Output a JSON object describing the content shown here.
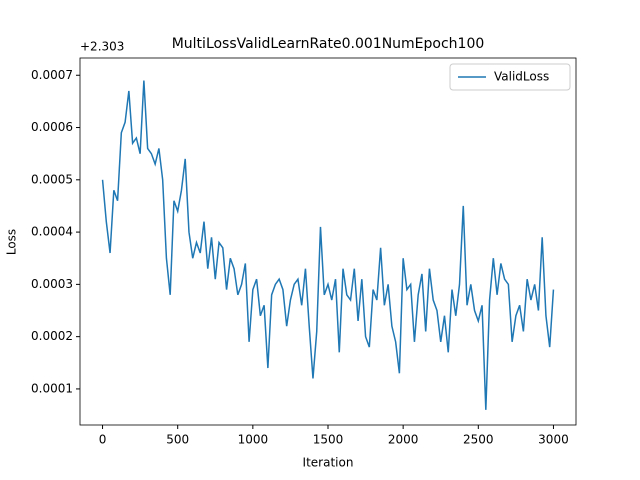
{
  "chart_data": {
    "type": "line",
    "title": "MultiLossValidLearnRate0.001NumEpoch100",
    "x_label": "Iteration",
    "y_label": "Loss",
    "y_offset": "+2.303",
    "x": [
      0,
      25,
      50,
      75,
      100,
      125,
      150,
      175,
      200,
      225,
      250,
      275,
      300,
      325,
      350,
      375,
      400,
      425,
      450,
      475,
      500,
      525,
      550,
      575,
      600,
      625,
      650,
      675,
      700,
      725,
      750,
      775,
      800,
      825,
      850,
      875,
      900,
      925,
      950,
      975,
      1000,
      1025,
      1050,
      1075,
      1100,
      1125,
      1150,
      1175,
      1200,
      1225,
      1250,
      1275,
      1300,
      1325,
      1350,
      1375,
      1400,
      1425,
      1450,
      1475,
      1500,
      1525,
      1550,
      1575,
      1600,
      1625,
      1650,
      1675,
      1700,
      1725,
      1750,
      1775,
      1800,
      1825,
      1850,
      1875,
      1900,
      1925,
      1950,
      1975,
      2000,
      2025,
      2050,
      2075,
      2100,
      2125,
      2150,
      2175,
      2200,
      2225,
      2250,
      2275,
      2300,
      2325,
      2350,
      2375,
      2400,
      2425,
      2450,
      2475,
      2500,
      2525,
      2550,
      2575,
      2600,
      2625,
      2650,
      2675,
      2700,
      2725,
      2750,
      2775,
      2800,
      2825,
      2850,
      2875,
      2900,
      2925,
      2950,
      2975,
      3000
    ],
    "series": [
      {
        "name": "ValidLoss",
        "color": "#1f77b4",
        "values": [
          0.0005,
          0.00042,
          0.00036,
          0.00048,
          0.00046,
          0.00059,
          0.00061,
          0.00067,
          0.00057,
          0.00058,
          0.00055,
          0.00069,
          0.00056,
          0.00055,
          0.00053,
          0.00056,
          0.0005,
          0.00035,
          0.00028,
          0.00046,
          0.00044,
          0.00048,
          0.00054,
          0.0004,
          0.00035,
          0.00038,
          0.00036,
          0.00042,
          0.00033,
          0.00039,
          0.00031,
          0.00038,
          0.00037,
          0.00029,
          0.00035,
          0.00033,
          0.00028,
          0.0003,
          0.00034,
          0.00019,
          0.00029,
          0.00031,
          0.00024,
          0.00026,
          0.00014,
          0.00028,
          0.0003,
          0.00031,
          0.00029,
          0.00022,
          0.00027,
          0.0003,
          0.00031,
          0.00026,
          0.00033,
          0.00022,
          0.00012,
          0.00021,
          0.00041,
          0.00028,
          0.0003,
          0.00027,
          0.00031,
          0.00017,
          0.00033,
          0.00028,
          0.00027,
          0.00033,
          0.00023,
          0.00031,
          0.0002,
          0.00018,
          0.00029,
          0.00027,
          0.00037,
          0.00026,
          0.0003,
          0.00022,
          0.00019,
          0.00013,
          0.00035,
          0.00029,
          0.0003,
          0.00019,
          0.00028,
          0.00032,
          0.00021,
          0.00033,
          0.00027,
          0.00025,
          0.00019,
          0.00024,
          0.00017,
          0.00029,
          0.00024,
          0.0003,
          0.00045,
          0.00026,
          0.0003,
          0.00025,
          0.00023,
          0.00026,
          6e-05,
          0.00027,
          0.00035,
          0.00028,
          0.00034,
          0.00031,
          0.0003,
          0.00019,
          0.00024,
          0.00026,
          0.00021,
          0.00031,
          0.00027,
          0.0003,
          0.00025,
          0.00039,
          0.00024,
          0.00018,
          0.00029
        ]
      }
    ],
    "xlim": [
      -150,
      3150
    ],
    "xticks": [
      0,
      500,
      1000,
      1500,
      2000,
      2500,
      3000
    ],
    "ylim": [
      3.1e-05,
      0.000733
    ],
    "yticks": [
      0.0001,
      0.0002,
      0.0003,
      0.0004,
      0.0005,
      0.0006,
      0.0007
    ],
    "legend": "upper right"
  }
}
